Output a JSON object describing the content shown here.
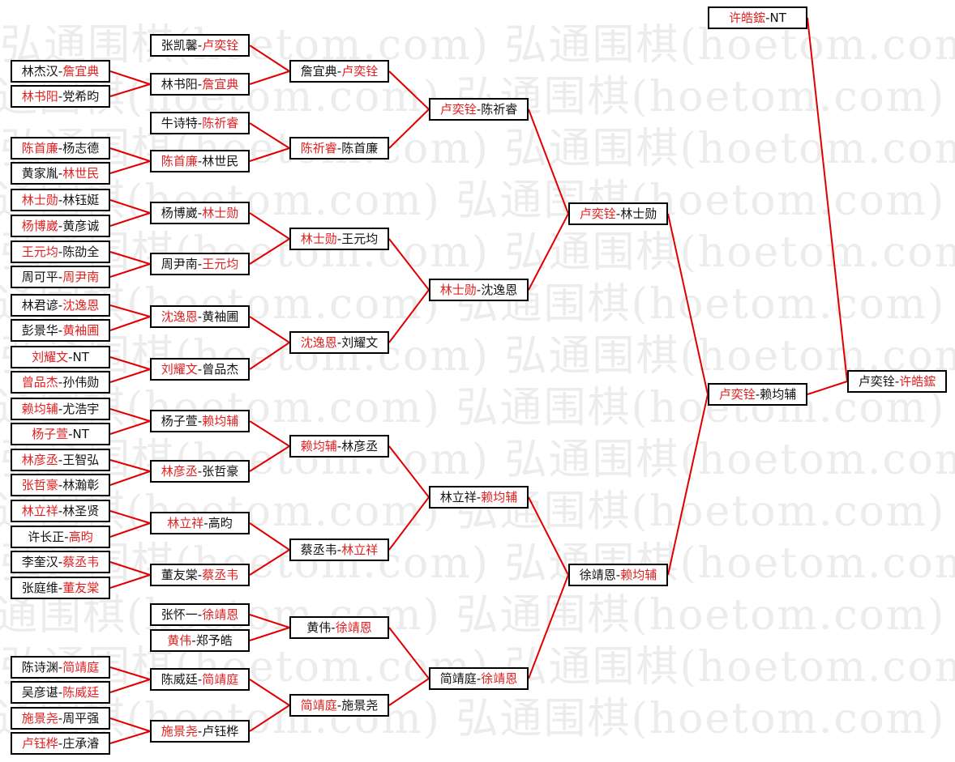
{
  "watermark": "弘通围棋(hoetom.com) 弘通围棋(hoetom.com)",
  "colors": {
    "winner": "#e02020",
    "line": "#e00000",
    "text": "#111111"
  },
  "rounds": [
    [
      {
        "a": "林杰汉",
        "b": "詹宜典",
        "win": "b"
      },
      {
        "a": "林书阳",
        "b": "党希昀",
        "win": "a"
      },
      {
        "a": "陈首廉",
        "b": "杨志德",
        "win": "a"
      },
      {
        "a": "黄家胤",
        "b": "林世民",
        "win": "b"
      },
      {
        "a": "林士勋",
        "b": "林钰娗",
        "win": "a"
      },
      {
        "a": "杨博崴",
        "b": "黄彦诚",
        "win": "a"
      },
      {
        "a": "王元均",
        "b": "陈劭全",
        "win": "a"
      },
      {
        "a": "周可平",
        "b": "周尹南",
        "win": "b"
      },
      {
        "a": "林君谚",
        "b": "沈逸恩",
        "win": "b"
      },
      {
        "a": "彭景华",
        "b": "黄袖圃",
        "win": "b"
      },
      {
        "a": "刘耀文",
        "b": "NT",
        "win": "a"
      },
      {
        "a": "曾品杰",
        "b": "孙伟勋",
        "win": "a"
      },
      {
        "a": "赖均辅",
        "b": "尤浩宇",
        "win": "a"
      },
      {
        "a": "杨子萱",
        "b": "NT",
        "win": "a"
      },
      {
        "a": "林彦丞",
        "b": "王智弘",
        "win": "a"
      },
      {
        "a": "张哲豪",
        "b": "林瀚彰",
        "win": "a"
      },
      {
        "a": "林立祥",
        "b": "林圣贤",
        "win": "a"
      },
      {
        "a": "许长正",
        "b": "高昀",
        "win": "b"
      },
      {
        "a": "李奎汉",
        "b": "蔡丞韦",
        "win": "b"
      },
      {
        "a": "张庭维",
        "b": "董友棠",
        "win": "b"
      },
      {
        "a": "陈诗渊",
        "b": "简靖庭",
        "win": "b"
      },
      {
        "a": "吴彦谌",
        "b": "陈威廷",
        "win": "b"
      },
      {
        "a": "施景尧",
        "b": "周平强",
        "win": "a"
      },
      {
        "a": "卢钰桦",
        "b": "庄承濬",
        "win": "a"
      }
    ],
    [
      {
        "a": "张凯馨",
        "b": "卢奕铨",
        "win": "b"
      },
      {
        "a": "林书阳",
        "b": "詹宜典",
        "win": "b"
      },
      {
        "a": "牛诗特",
        "b": "陈祈睿",
        "win": "b"
      },
      {
        "a": "陈首廉",
        "b": "林世民",
        "win": "a"
      },
      {
        "a": "杨博崴",
        "b": "林士勋",
        "win": "b"
      },
      {
        "a": "周尹南",
        "b": "王元均",
        "win": "b"
      },
      {
        "a": "沈逸恩",
        "b": "黄袖圃",
        "win": "a"
      },
      {
        "a": "刘耀文",
        "b": "曾品杰",
        "win": "a"
      },
      {
        "a": "杨子萱",
        "b": "赖均辅",
        "win": "b"
      },
      {
        "a": "林彦丞",
        "b": "张哲豪",
        "win": "a"
      },
      {
        "a": "林立祥",
        "b": "高昀",
        "win": "a"
      },
      {
        "a": "董友棠",
        "b": "蔡丞韦",
        "win": "b"
      },
      {
        "a": "张怀一",
        "b": "徐靖恩",
        "win": "b"
      },
      {
        "a": "黄伟",
        "b": "郑予皓",
        "win": "a"
      },
      {
        "a": "陈威廷",
        "b": "简靖庭",
        "win": "b"
      },
      {
        "a": "施景尧",
        "b": "卢钰桦",
        "win": "a"
      }
    ],
    [
      {
        "a": "詹宜典",
        "b": "卢奕铨",
        "win": "b"
      },
      {
        "a": "陈祈睿",
        "b": "陈首廉",
        "win": "a"
      },
      {
        "a": "林士勋",
        "b": "王元均",
        "win": "a"
      },
      {
        "a": "沈逸恩",
        "b": "刘耀文",
        "win": "a"
      },
      {
        "a": "赖均辅",
        "b": "林彦丞",
        "win": "a"
      },
      {
        "a": "蔡丞韦",
        "b": "林立祥",
        "win": "b"
      },
      {
        "a": "黄伟",
        "b": "徐靖恩",
        "win": "b"
      },
      {
        "a": "简靖庭",
        "b": "施景尧",
        "win": "a"
      }
    ],
    [
      {
        "a": "卢奕铨",
        "b": "陈祈睿",
        "win": "a"
      },
      {
        "a": "林士勋",
        "b": "沈逸恩",
        "win": "a"
      },
      {
        "a": "林立祥",
        "b": "赖均辅",
        "win": "b"
      },
      {
        "a": "简靖庭",
        "b": "徐靖恩",
        "win": "b"
      }
    ],
    [
      {
        "a": "卢奕铨",
        "b": "林士勋",
        "win": "a"
      },
      {
        "a": "徐靖恩",
        "b": "赖均辅",
        "win": "b"
      }
    ],
    [
      {
        "a": "卢奕铨",
        "b": "赖均辅",
        "win": "a"
      }
    ],
    [
      {
        "a": "卢奕铨",
        "b": "许皓鋐",
        "win": "b"
      }
    ]
  ],
  "bye": {
    "a": "许皓鋐",
    "b": "NT",
    "win": "a"
  }
}
